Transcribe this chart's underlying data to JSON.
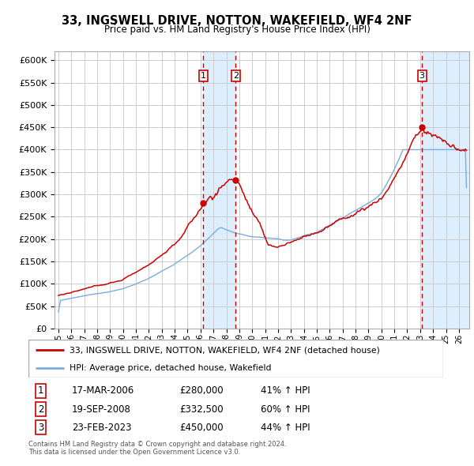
{
  "title": "33, INGSWELL DRIVE, NOTTON, WAKEFIELD, WF4 2NF",
  "subtitle": "Price paid vs. HM Land Registry's House Price Index (HPI)",
  "ylabel_ticks": [
    "£0",
    "£50K",
    "£100K",
    "£150K",
    "£200K",
    "£250K",
    "£300K",
    "£350K",
    "£400K",
    "£450K",
    "£500K",
    "£550K",
    "£600K"
  ],
  "ytick_values": [
    0,
    50000,
    100000,
    150000,
    200000,
    250000,
    300000,
    350000,
    400000,
    450000,
    500000,
    550000,
    600000
  ],
  "xmin": 1994.7,
  "xmax": 2026.8,
  "ymin": 0,
  "ymax": 620000,
  "hpi_color": "#7aadde",
  "price_color": "#cc0000",
  "transaction1": {
    "date": "17-MAR-2006",
    "price": 280000,
    "pct": "41%",
    "x": 2006.21
  },
  "transaction2": {
    "date": "19-SEP-2008",
    "price": 332500,
    "pct": "60%",
    "x": 2008.72
  },
  "transaction3": {
    "date": "23-FEB-2023",
    "price": 450000,
    "pct": "44%",
    "x": 2023.14
  },
  "legend_label1": "33, INGSWELL DRIVE, NOTTON, WAKEFIELD, WF4 2NF (detached house)",
  "legend_label2": "HPI: Average price, detached house, Wakefield",
  "footer1": "Contains HM Land Registry data © Crown copyright and database right 2024.",
  "footer2": "This data is licensed under the Open Government Licence v3.0.",
  "xtick_years": [
    1995,
    1996,
    1997,
    1998,
    1999,
    2000,
    2001,
    2002,
    2003,
    2004,
    2005,
    2006,
    2007,
    2008,
    2009,
    2010,
    2011,
    2012,
    2013,
    2014,
    2015,
    2016,
    2017,
    2018,
    2019,
    2020,
    2021,
    2022,
    2023,
    2024,
    2025,
    2026
  ],
  "background_color": "#ffffff",
  "grid_color": "#cccccc",
  "shade_color": "#ddeeff"
}
